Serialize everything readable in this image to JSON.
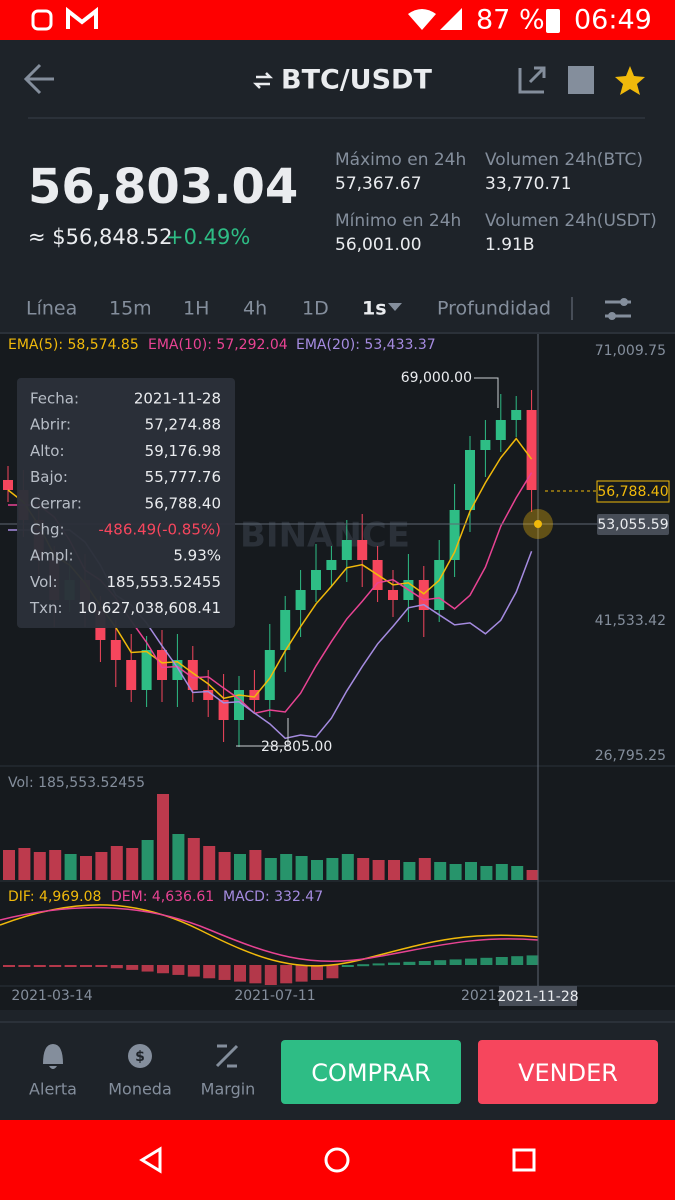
{
  "status": {
    "battery": "87 %",
    "time": "06:49"
  },
  "header": {
    "title": "BTC/USDT"
  },
  "price": {
    "last": "56,803.04",
    "equiv": "≈ $56,848.52",
    "change": "+0.49%"
  },
  "stats": [
    {
      "label": "Máximo en 24h",
      "value": "57,367.67"
    },
    {
      "label": "Volumen 24h(BTC)",
      "value": "33,770.71"
    },
    {
      "label": "Mínimo en 24h",
      "value": "56,001.00"
    },
    {
      "label": "Volumen 24h(USDT)",
      "value": "1.91B"
    }
  ],
  "tabs": [
    "Línea",
    "15m",
    "1H",
    "4h",
    "1D",
    "1s",
    "Profundidad"
  ],
  "chart": {
    "ema": [
      "EMA(5): 58,574.85",
      "EMA(10): 57,292.04",
      "EMA(20): 53,433.37"
    ],
    "axis": [
      "71,009.75",
      "41,533.42",
      "26,795.25"
    ],
    "high_label": "69,000.00",
    "low_label": "28,805.00",
    "last": "56,788.40",
    "cross": "53,055.59",
    "watermark": "BINANCE",
    "tooltip": [
      {
        "label": "Fecha:",
        "value": "2021-11-28"
      },
      {
        "label": "Abrir:",
        "value": "57,274.88"
      },
      {
        "label": "Alto:",
        "value": "59,176.98"
      },
      {
        "label": "Bajo:",
        "value": "55,777.76"
      },
      {
        "label": "Cerrar:",
        "value": "56,788.40"
      },
      {
        "label": "Chg:",
        "value": "-486.49(-0.85%)"
      },
      {
        "label": "Ampl:",
        "value": "5.93%"
      },
      {
        "label": "Vol:",
        "value": "185,553.52455"
      },
      {
        "label": "Txn:",
        "value": "10,627,038,608.41"
      }
    ],
    "volume": "Vol: 185,553.52455",
    "macd": [
      "DIF: 4,969.08",
      "DEM: 4,636.61",
      "MACD: 332.47"
    ],
    "dates": [
      "2021-03-14",
      "2021-07-11",
      "2021-",
      "2021-11-28"
    ]
  },
  "footer": {
    "actions": [
      "Alerta",
      "Moneda",
      "Margin"
    ],
    "buy": "COMPRAR",
    "sell": "VENDER"
  }
}
